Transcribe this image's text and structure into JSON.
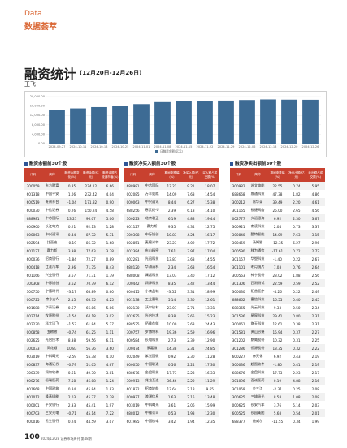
{
  "header": {
    "section_en": "Data",
    "section_cn": "数据荟萃"
  },
  "article": {
    "title": "融资统计",
    "subtitle": "(12月20日-12月26日)",
    "author": "王飞"
  },
  "chart_data": {
    "type": "bar",
    "series": [
      {
        "name": "日融资余额(亿元)",
        "color": "#3d6b94",
        "values": [
          14230,
          14980,
          15530,
          16050,
          16800,
          17650,
          18100,
          18200,
          18300,
          18550,
          18800,
          18700,
          18650
        ]
      }
    ],
    "categories": [
      "2024-09-27",
      "2024-10-11",
      "2024-10-18",
      "2024-10-25",
      "2024-11-01",
      "2024-11-08",
      "2024-11-15",
      "2024-11-22",
      "2024-11-29",
      "2024-12-06",
      "2024-12-13",
      "2024-12-20",
      "2024-12-26"
    ],
    "ylim": [
      0,
      20000
    ],
    "yticks": [
      {
        "value": 0,
        "label": "0.00"
      },
      {
        "value": 4000,
        "label": "4,000.00"
      },
      {
        "value": 8000,
        "label": "8,000.00"
      },
      {
        "value": 12000,
        "label": "12,000.00"
      },
      {
        "value": 16000,
        "label": "16,000.00"
      },
      {
        "value": 20000,
        "label": "20,000.00"
      }
    ],
    "grid": true
  },
  "tables": [
    {
      "title": "融资余额前30个股",
      "headers": [
        "代码",
        "简称",
        "融资余额变化(%)",
        "融资余额(亿元)",
        "融资余额占流通市值(%)"
      ],
      "rows": [
        [
          "300059",
          "东方财富",
          "0.85",
          "274.12",
          "6.66"
        ],
        [
          "601318",
          "中国平安",
          "1.06",
          "232.42",
          "4.04"
        ],
        [
          "600519",
          "贵州茅台",
          "-1.04",
          "171.82",
          "0.90"
        ],
        [
          "600030",
          "中信证券",
          "0.26",
          "150.24",
          "4.58"
        ],
        [
          "688981",
          "中芯国际",
          "13.21",
          "96.07",
          "5.06"
        ],
        [
          "600900",
          "长江电力",
          "0.21",
          "92.13",
          "1.28"
        ],
        [
          "000063",
          "中兴通讯",
          "0.44",
          "87.72",
          "5.31"
        ],
        [
          "002594",
          "比亚迪",
          "-0.19",
          "86.72",
          "1.68"
        ],
        [
          "601127",
          "赛力斯",
          "3.98",
          "77.63",
          "3.78"
        ],
        [
          "600036",
          "招商银行",
          "-1.84",
          "72.27",
          "0.89"
        ],
        [
          "600418",
          "江淮汽车",
          "2.96",
          "71.75",
          "8.43"
        ],
        [
          "601166",
          "兴业银行",
          "3.67",
          "71.31",
          "1.79"
        ],
        [
          "300308",
          "中际旭创",
          "3.62",
          "70.79",
          "6.12"
        ],
        [
          "300750",
          "宁德时代",
          "-3.17",
          "68.89",
          "0.60"
        ],
        [
          "000725",
          "京东方A",
          "2.15",
          "68.75",
          "4.25"
        ],
        [
          "601688",
          "华泰证券",
          "0.67",
          "66.86",
          "5.06"
        ],
        [
          "002714",
          "牧原股份",
          "-1.54",
          "64.18",
          "3.02"
        ],
        [
          "002230",
          "科大讯飞",
          "-1.53",
          "61.84",
          "5.27"
        ],
        [
          "000858",
          "五粮液",
          "-0.74",
          "61.25",
          "1.11"
        ],
        [
          "002625",
          "光启技术",
          "8.38",
          "59.56",
          "6.11"
        ],
        [
          "300033",
          "同花顺",
          "10.83",
          "56.76",
          "3.60"
        ],
        [
          "603019",
          "中科曙光",
          "-2.59",
          "55.38",
          "4.10"
        ],
        [
          "600837",
          "海通证券",
          "-0.79",
          "51.05",
          "4.67"
        ],
        [
          "300339",
          "润和软件",
          "0.61",
          "49.70",
          "3.01"
        ],
        [
          "600276",
          "恒瑞医药",
          "7.58",
          "46.08",
          "1.24"
        ],
        [
          "601668",
          "中国建筑",
          "0.84",
          "45.84",
          "1.83"
        ],
        [
          "601012",
          "隆基绿能",
          "2.03",
          "45.77",
          "2.38"
        ],
        [
          "000001",
          "平安银行",
          "2.33",
          "45.41",
          "1.97"
        ],
        [
          "600703",
          "三安光电",
          "-0.71",
          "45.14",
          "7.22"
        ],
        [
          "600016",
          "民生银行",
          "0.24",
          "44.59",
          "3.07"
        ]
      ]
    },
    {
      "title": "融资净买入额前30个股",
      "headers": [
        "代码",
        "简称",
        "期间涨跌幅(%)",
        "净买入额(亿元)",
        "买入额占成交额(%)"
      ],
      "rows": [
        [
          "688981",
          "中芯国际",
          "13.21",
          "9.21",
          "18.07"
        ],
        [
          "002085",
          "万丰奥威",
          "14.09",
          "7.63",
          "14.54"
        ],
        [
          "000063",
          "中兴通讯",
          "8.44",
          "6.27",
          "15.38"
        ],
        [
          "688256",
          "寒武纪-U",
          "2.39",
          "6.13",
          "14.10"
        ],
        [
          "300223",
          "北京君正",
          "6.19",
          "4.88",
          "19.44"
        ],
        [
          "601127",
          "赛力斯",
          "9.35",
          "4.34",
          "12.75"
        ],
        [
          "300308",
          "中际旭创",
          "10.83",
          "4.24",
          "16.17"
        ],
        [
          "002851",
          "麦格米特",
          "23.23",
          "4.09",
          "17.72"
        ],
        [
          "002384",
          "东山精密",
          "7.61",
          "3.97",
          "17.04"
        ],
        [
          "002281",
          "光迅科技",
          "13.87",
          "3.63",
          "14.55"
        ],
        [
          "688120",
          "华海清科",
          "2.34",
          "3.63",
          "16.54"
        ],
        [
          "688008",
          "澜起科技",
          "13.03",
          "3.40",
          "17.12"
        ],
        [
          "300442",
          "润泽科技",
          "8.35",
          "3.42",
          "13.44"
        ],
        [
          "600415",
          "小商品城",
          "-3.52",
          "3.31",
          "18.99"
        ],
        [
          "601138",
          "工业富联",
          "5.14",
          "3.30",
          "12.61"
        ],
        [
          "002130",
          "沃尔核材",
          "23.07",
          "2.71",
          "13.31"
        ],
        [
          "002625",
          "光启技术",
          "8.38",
          "2.65",
          "15.23"
        ],
        [
          "688525",
          "佰维存储",
          "10.00",
          "2.63",
          "24.43"
        ],
        [
          "300757",
          "罗博特科",
          "19.36",
          "2.59",
          "16.96"
        ],
        [
          "600584",
          "长电科技",
          "2.73",
          "2.39",
          "12.90"
        ],
        [
          "300474",
          "景嘉微",
          "14.38",
          "2.31",
          "24.85"
        ],
        [
          "002049",
          "紫光国微",
          "0.92",
          "2.30",
          "11.28"
        ],
        [
          "600050",
          "中国联通",
          "0.56",
          "2.24",
          "17.30"
        ],
        [
          "688676",
          "金盘科技",
          "17.73",
          "2.23",
          "16.33"
        ],
        [
          "300913",
          "兆龙互连",
          "36.46",
          "2.20",
          "11.29"
        ],
        [
          "601872",
          "招商轮船",
          "13.64",
          "2.18",
          "9.65"
        ],
        [
          "000977",
          "浪潮信息",
          "1.63",
          "2.15",
          "13.48"
        ],
        [
          "603019",
          "中科曙光",
          "3.61",
          "2.06",
          "15.99"
        ],
        [
          "688012",
          "中微公司",
          "0.53",
          "1.93",
          "12.30"
        ],
        [
          "601985",
          "中国核电",
          "3.42",
          "1.94",
          "12.35"
        ]
      ]
    },
    {
      "title": "融资净卖出额前30个股",
      "headers": [
        "代码",
        "简称",
        "期间涨跌幅(%)",
        "净卖出额(亿元)",
        "卖出额占成交额(%)"
      ],
      "rows": [
        [
          "300982",
          "苏文电能",
          "22.55",
          "0.74",
          "5.95"
        ],
        [
          "688668",
          "鼎通科技",
          "47.38",
          "1.82",
          "4.86"
        ],
        [
          "300212",
          "易华录",
          "39.49",
          "2.20",
          "4.61"
        ],
        [
          "301165",
          "锐捷网络",
          "25.00",
          "2.65",
          "4.56"
        ],
        [
          "002777",
          "久远银海",
          "6.92",
          "2.30",
          "3.67"
        ],
        [
          "300921",
          "南凌科技",
          "2.04",
          "0.73",
          "3.37"
        ],
        [
          "300840",
          "酷特智能",
          "14.09",
          "7.63",
          "3.15"
        ],
        [
          "300459",
          "汤姆猫",
          "-12.35",
          "6.27",
          "2.96"
        ],
        [
          "300590",
          "移为通信",
          "-17.61",
          "0.72",
          "2.72"
        ],
        [
          "301157",
          "华塑科技",
          "-1.40",
          "0.22",
          "2.67"
        ],
        [
          "301101",
          "明月镜片",
          "7.03",
          "0.76",
          "2.64"
        ],
        [
          "300563",
          "神宇股份",
          "23.02",
          "1.88",
          "2.56"
        ],
        [
          "301306",
          "西测测试",
          "22.59",
          "0.59",
          "2.52"
        ],
        [
          "300030",
          "阳普医疗",
          "-4.26",
          "0.22",
          "2.49"
        ],
        [
          "688662",
          "富信科技",
          "16.55",
          "0.40",
          "2.45"
        ],
        [
          "688365",
          "光云科技",
          "9.33",
          "0.50",
          "2.34"
        ],
        [
          "301536",
          "星宸科技",
          "29.41",
          "0.80",
          "2.31"
        ],
        [
          "300061",
          "旗天科技",
          "12.61",
          "0.38",
          "2.31"
        ],
        [
          "301581",
          "黄山谷捷",
          "15.94",
          "0.37",
          "2.27"
        ],
        [
          "301202",
          "朗威股份",
          "10.32",
          "0.31",
          "2.25"
        ],
        [
          "301286",
          "侨源股份",
          "13.35",
          "0.32",
          "2.22"
        ],
        [
          "600227",
          "赤天化",
          "6.92",
          "0.43",
          "2.19"
        ],
        [
          "300036",
          "超图软件",
          "-1.80",
          "0.41",
          "2.19"
        ],
        [
          "688676",
          "金盘科技",
          "17.73",
          "2.23",
          "2.17"
        ],
        [
          "301096",
          "百诚医药",
          "0.19",
          "4.88",
          "2.16"
        ],
        [
          "301059",
          "金三江",
          "-2.31",
          "0.25",
          "2.08"
        ],
        [
          "300625",
          "三雄极光",
          "8.58",
          "1.08",
          "2.08"
        ],
        [
          "000625",
          "长安汽车",
          "3.76",
          "5.14",
          "2.03"
        ],
        [
          "600525",
          "长园集团",
          "5.68",
          "0.54",
          "2.01"
        ],
        [
          "688377",
          "迪威尔",
          "-11.55",
          "0.34",
          "1.99"
        ]
      ]
    }
  ],
  "footer": {
    "page": "100",
    "text": "2024/12/28 证券市场周刊 第48期"
  }
}
